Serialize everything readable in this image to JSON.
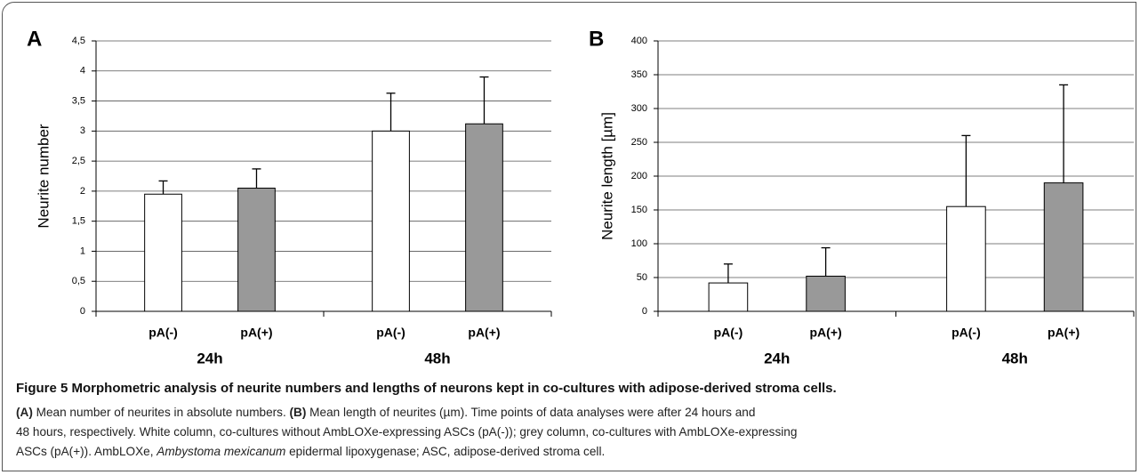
{
  "chart_data": [
    {
      "type": "bar",
      "panel": "A",
      "ylabel": "Neurite number",
      "categories": [
        "24h",
        "48h"
      ],
      "series": [
        {
          "name": "pA(-)",
          "color": "#ffffff",
          "values": [
            1.95,
            3.0
          ],
          "errors": [
            0.22,
            0.63
          ]
        },
        {
          "name": "pA(+)",
          "color": "#999999",
          "values": [
            2.05,
            3.12
          ],
          "errors": [
            0.32,
            0.78
          ]
        }
      ],
      "ylim": [
        0,
        4.5
      ],
      "yticks": [
        0,
        {
          "value": 0.5,
          "label": "0,5"
        },
        1,
        {
          "value": 1.5,
          "label": "1,5"
        },
        2,
        {
          "value": 2.5,
          "label": "2,5"
        },
        3,
        {
          "value": 3.5,
          "label": "3,5"
        },
        4,
        {
          "value": 4.5,
          "label": "4,5"
        }
      ],
      "grid": true
    },
    {
      "type": "bar",
      "panel": "B",
      "ylabel": "Neurite length [µm]",
      "categories": [
        "24h",
        "48h"
      ],
      "series": [
        {
          "name": "pA(-)",
          "color": "#ffffff",
          "values": [
            42,
            155
          ],
          "errors": [
            28,
            105
          ]
        },
        {
          "name": "pA(+)",
          "color": "#999999",
          "values": [
            52,
            190
          ],
          "errors": [
            42,
            145
          ]
        }
      ],
      "ylim": [
        0,
        400
      ],
      "yticks": [
        0,
        50,
        100,
        150,
        200,
        250,
        300,
        350,
        400
      ],
      "grid": true
    }
  ],
  "caption": {
    "title": "Figure 5 Morphometric analysis of neurite numbers and lengths of neurons kept in co-cultures with adipose-derived stroma cells.",
    "lines": [
      [
        "(A)",
        " Mean number of neurites in absolute numbers. ",
        "(B)",
        " Mean length of neurites (µm). Time points of data analyses were after 24 hours and"
      ],
      [
        "48 hours, respectively. White column, co-cultures without AmbLOXe-expressing ASCs (pA(-)); grey column, co-cultures with AmbLOXe-expressing"
      ],
      [
        "ASCs (pA(+)). AmbLOXe, ",
        "Ambystoma mexicanum",
        " epidermal lipoxygenase; ASC, adipose-derived stroma cell."
      ]
    ]
  }
}
